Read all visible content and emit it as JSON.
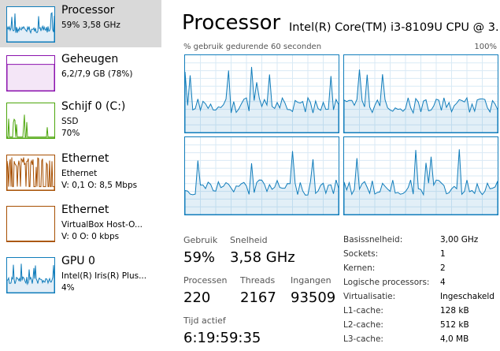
{
  "sidebar": [
    {
      "title": "Processor",
      "lines": [
        "59% 3,58 GHz"
      ]
    },
    {
      "title": "Geheugen",
      "lines": [
        "6,2/7,9 GB (78%)"
      ]
    },
    {
      "title": "Schijf 0 (C:)",
      "lines": [
        "SSD",
        "70%"
      ]
    },
    {
      "title": "Ethernet",
      "lines": [
        "Ethernet",
        "V: 0,1 O: 8,5 Mbps"
      ]
    },
    {
      "title": "Ethernet",
      "lines": [
        "VirtualBox Host-O...",
        "V: 0 O: 0 kbps"
      ]
    },
    {
      "title": "GPU 0",
      "lines": [
        "Intel(R) Iris(R) Plus...",
        "4%"
      ]
    }
  ],
  "main": {
    "title": "Processor",
    "subtitle": "Intel(R) Core(TM) i3-8109U CPU @ 3...",
    "graph_label": "% gebruik gedurende 60 seconden",
    "graph_max": "100%",
    "stats": [
      {
        "label": "Gebruik",
        "value": "59%"
      },
      {
        "label": "Snelheid",
        "value": "3,58 GHz"
      },
      {
        "label": "Processen",
        "value": "220"
      },
      {
        "label": "Threads",
        "value": "2167"
      },
      {
        "label": "Ingangen",
        "value": "93509"
      },
      {
        "label": "Tijd actief",
        "value": "6:19:59:35"
      }
    ],
    "details": [
      [
        "Basissnelheid:",
        "3,00 GHz"
      ],
      [
        "Sockets:",
        "1"
      ],
      [
        "Kernen:",
        "2"
      ],
      [
        "Logische processors:",
        "4"
      ],
      [
        "Virtualisatie:",
        "Ingeschakeld"
      ],
      [
        "L1-cache:",
        "128 kB"
      ],
      [
        "L2-cache:",
        "512 kB"
      ],
      [
        "L3-cache:",
        "4,0 MB"
      ]
    ]
  }
}
